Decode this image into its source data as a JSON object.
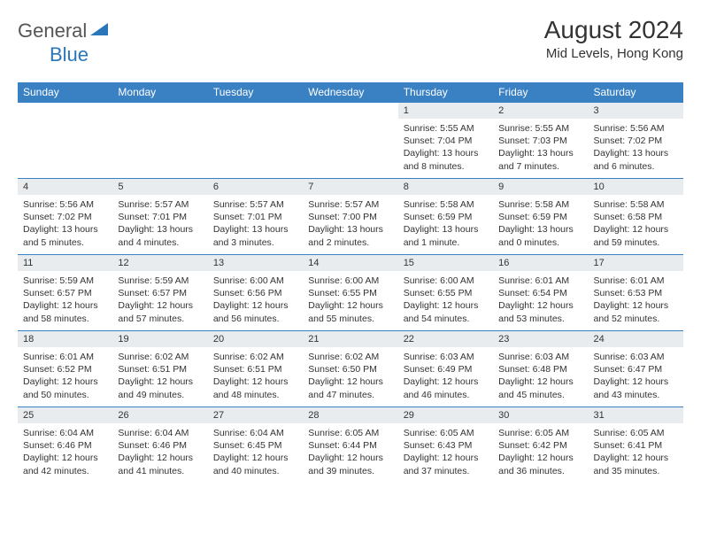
{
  "brand": {
    "part1": "General",
    "part2": "Blue"
  },
  "title": "August 2024",
  "location": "Mid Levels, Hong Kong",
  "colors": {
    "header_bg": "#3a81c4",
    "header_text": "#ffffff",
    "daynum_bg": "#e9ecef",
    "border": "#3a81c4",
    "brand_gray": "#555555",
    "brand_blue": "#2976b9"
  },
  "weekdays": [
    "Sunday",
    "Monday",
    "Tuesday",
    "Wednesday",
    "Thursday",
    "Friday",
    "Saturday"
  ],
  "weeks": [
    [
      {
        "n": "",
        "sr": "",
        "ss": "",
        "dl": ""
      },
      {
        "n": "",
        "sr": "",
        "ss": "",
        "dl": ""
      },
      {
        "n": "",
        "sr": "",
        "ss": "",
        "dl": ""
      },
      {
        "n": "",
        "sr": "",
        "ss": "",
        "dl": ""
      },
      {
        "n": "1",
        "sr": "Sunrise: 5:55 AM",
        "ss": "Sunset: 7:04 PM",
        "dl": "Daylight: 13 hours and 8 minutes."
      },
      {
        "n": "2",
        "sr": "Sunrise: 5:55 AM",
        "ss": "Sunset: 7:03 PM",
        "dl": "Daylight: 13 hours and 7 minutes."
      },
      {
        "n": "3",
        "sr": "Sunrise: 5:56 AM",
        "ss": "Sunset: 7:02 PM",
        "dl": "Daylight: 13 hours and 6 minutes."
      }
    ],
    [
      {
        "n": "4",
        "sr": "Sunrise: 5:56 AM",
        "ss": "Sunset: 7:02 PM",
        "dl": "Daylight: 13 hours and 5 minutes."
      },
      {
        "n": "5",
        "sr": "Sunrise: 5:57 AM",
        "ss": "Sunset: 7:01 PM",
        "dl": "Daylight: 13 hours and 4 minutes."
      },
      {
        "n": "6",
        "sr": "Sunrise: 5:57 AM",
        "ss": "Sunset: 7:01 PM",
        "dl": "Daylight: 13 hours and 3 minutes."
      },
      {
        "n": "7",
        "sr": "Sunrise: 5:57 AM",
        "ss": "Sunset: 7:00 PM",
        "dl": "Daylight: 13 hours and 2 minutes."
      },
      {
        "n": "8",
        "sr": "Sunrise: 5:58 AM",
        "ss": "Sunset: 6:59 PM",
        "dl": "Daylight: 13 hours and 1 minute."
      },
      {
        "n": "9",
        "sr": "Sunrise: 5:58 AM",
        "ss": "Sunset: 6:59 PM",
        "dl": "Daylight: 13 hours and 0 minutes."
      },
      {
        "n": "10",
        "sr": "Sunrise: 5:58 AM",
        "ss": "Sunset: 6:58 PM",
        "dl": "Daylight: 12 hours and 59 minutes."
      }
    ],
    [
      {
        "n": "11",
        "sr": "Sunrise: 5:59 AM",
        "ss": "Sunset: 6:57 PM",
        "dl": "Daylight: 12 hours and 58 minutes."
      },
      {
        "n": "12",
        "sr": "Sunrise: 5:59 AM",
        "ss": "Sunset: 6:57 PM",
        "dl": "Daylight: 12 hours and 57 minutes."
      },
      {
        "n": "13",
        "sr": "Sunrise: 6:00 AM",
        "ss": "Sunset: 6:56 PM",
        "dl": "Daylight: 12 hours and 56 minutes."
      },
      {
        "n": "14",
        "sr": "Sunrise: 6:00 AM",
        "ss": "Sunset: 6:55 PM",
        "dl": "Daylight: 12 hours and 55 minutes."
      },
      {
        "n": "15",
        "sr": "Sunrise: 6:00 AM",
        "ss": "Sunset: 6:55 PM",
        "dl": "Daylight: 12 hours and 54 minutes."
      },
      {
        "n": "16",
        "sr": "Sunrise: 6:01 AM",
        "ss": "Sunset: 6:54 PM",
        "dl": "Daylight: 12 hours and 53 minutes."
      },
      {
        "n": "17",
        "sr": "Sunrise: 6:01 AM",
        "ss": "Sunset: 6:53 PM",
        "dl": "Daylight: 12 hours and 52 minutes."
      }
    ],
    [
      {
        "n": "18",
        "sr": "Sunrise: 6:01 AM",
        "ss": "Sunset: 6:52 PM",
        "dl": "Daylight: 12 hours and 50 minutes."
      },
      {
        "n": "19",
        "sr": "Sunrise: 6:02 AM",
        "ss": "Sunset: 6:51 PM",
        "dl": "Daylight: 12 hours and 49 minutes."
      },
      {
        "n": "20",
        "sr": "Sunrise: 6:02 AM",
        "ss": "Sunset: 6:51 PM",
        "dl": "Daylight: 12 hours and 48 minutes."
      },
      {
        "n": "21",
        "sr": "Sunrise: 6:02 AM",
        "ss": "Sunset: 6:50 PM",
        "dl": "Daylight: 12 hours and 47 minutes."
      },
      {
        "n": "22",
        "sr": "Sunrise: 6:03 AM",
        "ss": "Sunset: 6:49 PM",
        "dl": "Daylight: 12 hours and 46 minutes."
      },
      {
        "n": "23",
        "sr": "Sunrise: 6:03 AM",
        "ss": "Sunset: 6:48 PM",
        "dl": "Daylight: 12 hours and 45 minutes."
      },
      {
        "n": "24",
        "sr": "Sunrise: 6:03 AM",
        "ss": "Sunset: 6:47 PM",
        "dl": "Daylight: 12 hours and 43 minutes."
      }
    ],
    [
      {
        "n": "25",
        "sr": "Sunrise: 6:04 AM",
        "ss": "Sunset: 6:46 PM",
        "dl": "Daylight: 12 hours and 42 minutes."
      },
      {
        "n": "26",
        "sr": "Sunrise: 6:04 AM",
        "ss": "Sunset: 6:46 PM",
        "dl": "Daylight: 12 hours and 41 minutes."
      },
      {
        "n": "27",
        "sr": "Sunrise: 6:04 AM",
        "ss": "Sunset: 6:45 PM",
        "dl": "Daylight: 12 hours and 40 minutes."
      },
      {
        "n": "28",
        "sr": "Sunrise: 6:05 AM",
        "ss": "Sunset: 6:44 PM",
        "dl": "Daylight: 12 hours and 39 minutes."
      },
      {
        "n": "29",
        "sr": "Sunrise: 6:05 AM",
        "ss": "Sunset: 6:43 PM",
        "dl": "Daylight: 12 hours and 37 minutes."
      },
      {
        "n": "30",
        "sr": "Sunrise: 6:05 AM",
        "ss": "Sunset: 6:42 PM",
        "dl": "Daylight: 12 hours and 36 minutes."
      },
      {
        "n": "31",
        "sr": "Sunrise: 6:05 AM",
        "ss": "Sunset: 6:41 PM",
        "dl": "Daylight: 12 hours and 35 minutes."
      }
    ]
  ]
}
